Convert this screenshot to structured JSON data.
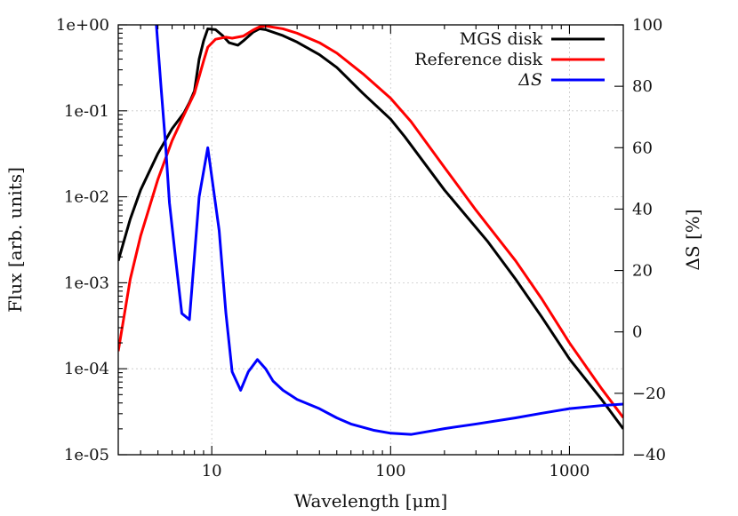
{
  "chart_data": {
    "type": "line",
    "title": "",
    "xlabel": "Wavelength [μm]",
    "ylabel": "Flux [arb. units]",
    "y2label": "ΔS [%]",
    "x_scale": "log",
    "y_scale": "log",
    "xlim": [
      3,
      2000
    ],
    "ylim": [
      1e-05,
      1
    ],
    "y2lim": [
      -40,
      100
    ],
    "grid": true,
    "legend_position": "top-right",
    "x_ticks": [
      {
        "value": 10,
        "label": "10"
      },
      {
        "value": 100,
        "label": "100"
      },
      {
        "value": 1000,
        "label": "1000"
      }
    ],
    "y_ticks": [
      {
        "value": 1e-05,
        "label": "1e-05"
      },
      {
        "value": 0.0001,
        "label": "1e-04"
      },
      {
        "value": 0.001,
        "label": "1e-03"
      },
      {
        "value": 0.01,
        "label": "1e-02"
      },
      {
        "value": 0.1,
        "label": "1e-01"
      },
      {
        "value": 1,
        "label": "1e+00"
      }
    ],
    "y2_ticks": [
      {
        "value": -40,
        "label": "−40"
      },
      {
        "value": -20,
        "label": "−20"
      },
      {
        "value": 0,
        "label": "0"
      },
      {
        "value": 20,
        "label": "20"
      },
      {
        "value": 40,
        "label": "40"
      },
      {
        "value": 60,
        "label": "60"
      },
      {
        "value": 80,
        "label": "80"
      },
      {
        "value": 100,
        "label": "100"
      }
    ],
    "series": [
      {
        "name": "MGS disk",
        "axis": "left",
        "color": "#000000",
        "points": [
          [
            3.0,
            0.0018
          ],
          [
            3.5,
            0.0055
          ],
          [
            4.0,
            0.012
          ],
          [
            5.0,
            0.032
          ],
          [
            6.0,
            0.062
          ],
          [
            7.0,
            0.095
          ],
          [
            7.5,
            0.125
          ],
          [
            8.0,
            0.17
          ],
          [
            8.5,
            0.4
          ],
          [
            9.0,
            0.65
          ],
          [
            9.5,
            0.9
          ],
          [
            10.5,
            0.88
          ],
          [
            11.5,
            0.75
          ],
          [
            12.5,
            0.62
          ],
          [
            14.0,
            0.58
          ],
          [
            15.0,
            0.65
          ],
          [
            17.0,
            0.82
          ],
          [
            18.5,
            0.9
          ],
          [
            20.0,
            0.88
          ],
          [
            25.0,
            0.75
          ],
          [
            30.0,
            0.63
          ],
          [
            40.0,
            0.45
          ],
          [
            50.0,
            0.32
          ],
          [
            70.0,
            0.16
          ],
          [
            100.0,
            0.08
          ],
          [
            120.0,
            0.05
          ],
          [
            200.0,
            0.012
          ],
          [
            350.0,
            0.003
          ],
          [
            500.0,
            0.0011
          ],
          [
            700.0,
            0.0004
          ],
          [
            1000.0,
            0.00013
          ],
          [
            1500.0,
            4.5e-05
          ],
          [
            2000.0,
            2e-05
          ]
        ]
      },
      {
        "name": "Reference disk",
        "axis": "left",
        "color": "#ff0000",
        "points": [
          [
            3.0,
            0.00016
          ],
          [
            3.5,
            0.0011
          ],
          [
            4.0,
            0.0035
          ],
          [
            5.0,
            0.016
          ],
          [
            6.0,
            0.045
          ],
          [
            7.0,
            0.09
          ],
          [
            8.0,
            0.16
          ],
          [
            9.0,
            0.38
          ],
          [
            9.5,
            0.55
          ],
          [
            10.5,
            0.68
          ],
          [
            12.0,
            0.72
          ],
          [
            13.0,
            0.7
          ],
          [
            15.0,
            0.74
          ],
          [
            17.0,
            0.87
          ],
          [
            18.5,
            0.95
          ],
          [
            20.0,
            0.97
          ],
          [
            25.0,
            0.9
          ],
          [
            30.0,
            0.8
          ],
          [
            40.0,
            0.62
          ],
          [
            50.0,
            0.47
          ],
          [
            70.0,
            0.27
          ],
          [
            100.0,
            0.14
          ],
          [
            130.0,
            0.075
          ],
          [
            200.0,
            0.022
          ],
          [
            300.0,
            0.007
          ],
          [
            500.0,
            0.0018
          ],
          [
            700.0,
            0.00065
          ],
          [
            1000.0,
            0.0002
          ],
          [
            1500.0,
            6e-05
          ],
          [
            2000.0,
            2.7e-05
          ]
        ]
      },
      {
        "name": "ΔS",
        "axis": "right",
        "color": "#0000ff",
        "points": [
          [
            4.9,
            100
          ],
          [
            5.2,
            80
          ],
          [
            5.5,
            62
          ],
          [
            5.8,
            42
          ],
          [
            6.3,
            23
          ],
          [
            6.8,
            6
          ],
          [
            7.5,
            4
          ],
          [
            8.5,
            44
          ],
          [
            9.5,
            60
          ],
          [
            11.0,
            33
          ],
          [
            12.0,
            6
          ],
          [
            13.0,
            -13
          ],
          [
            14.5,
            -19
          ],
          [
            16.0,
            -13
          ],
          [
            18.0,
            -9
          ],
          [
            20.0,
            -12
          ],
          [
            22.0,
            -16
          ],
          [
            25.0,
            -19
          ],
          [
            30.0,
            -22
          ],
          [
            40.0,
            -25
          ],
          [
            50.0,
            -28
          ],
          [
            60.0,
            -30
          ],
          [
            80.0,
            -32
          ],
          [
            100.0,
            -33
          ],
          [
            130.0,
            -33.4
          ],
          [
            160.0,
            -32.5
          ],
          [
            200.0,
            -31.5
          ],
          [
            300.0,
            -30
          ],
          [
            500.0,
            -28
          ],
          [
            700.0,
            -26.5
          ],
          [
            1000.0,
            -25
          ],
          [
            1500.0,
            -24
          ],
          [
            2000.0,
            -23.5
          ]
        ]
      }
    ]
  }
}
